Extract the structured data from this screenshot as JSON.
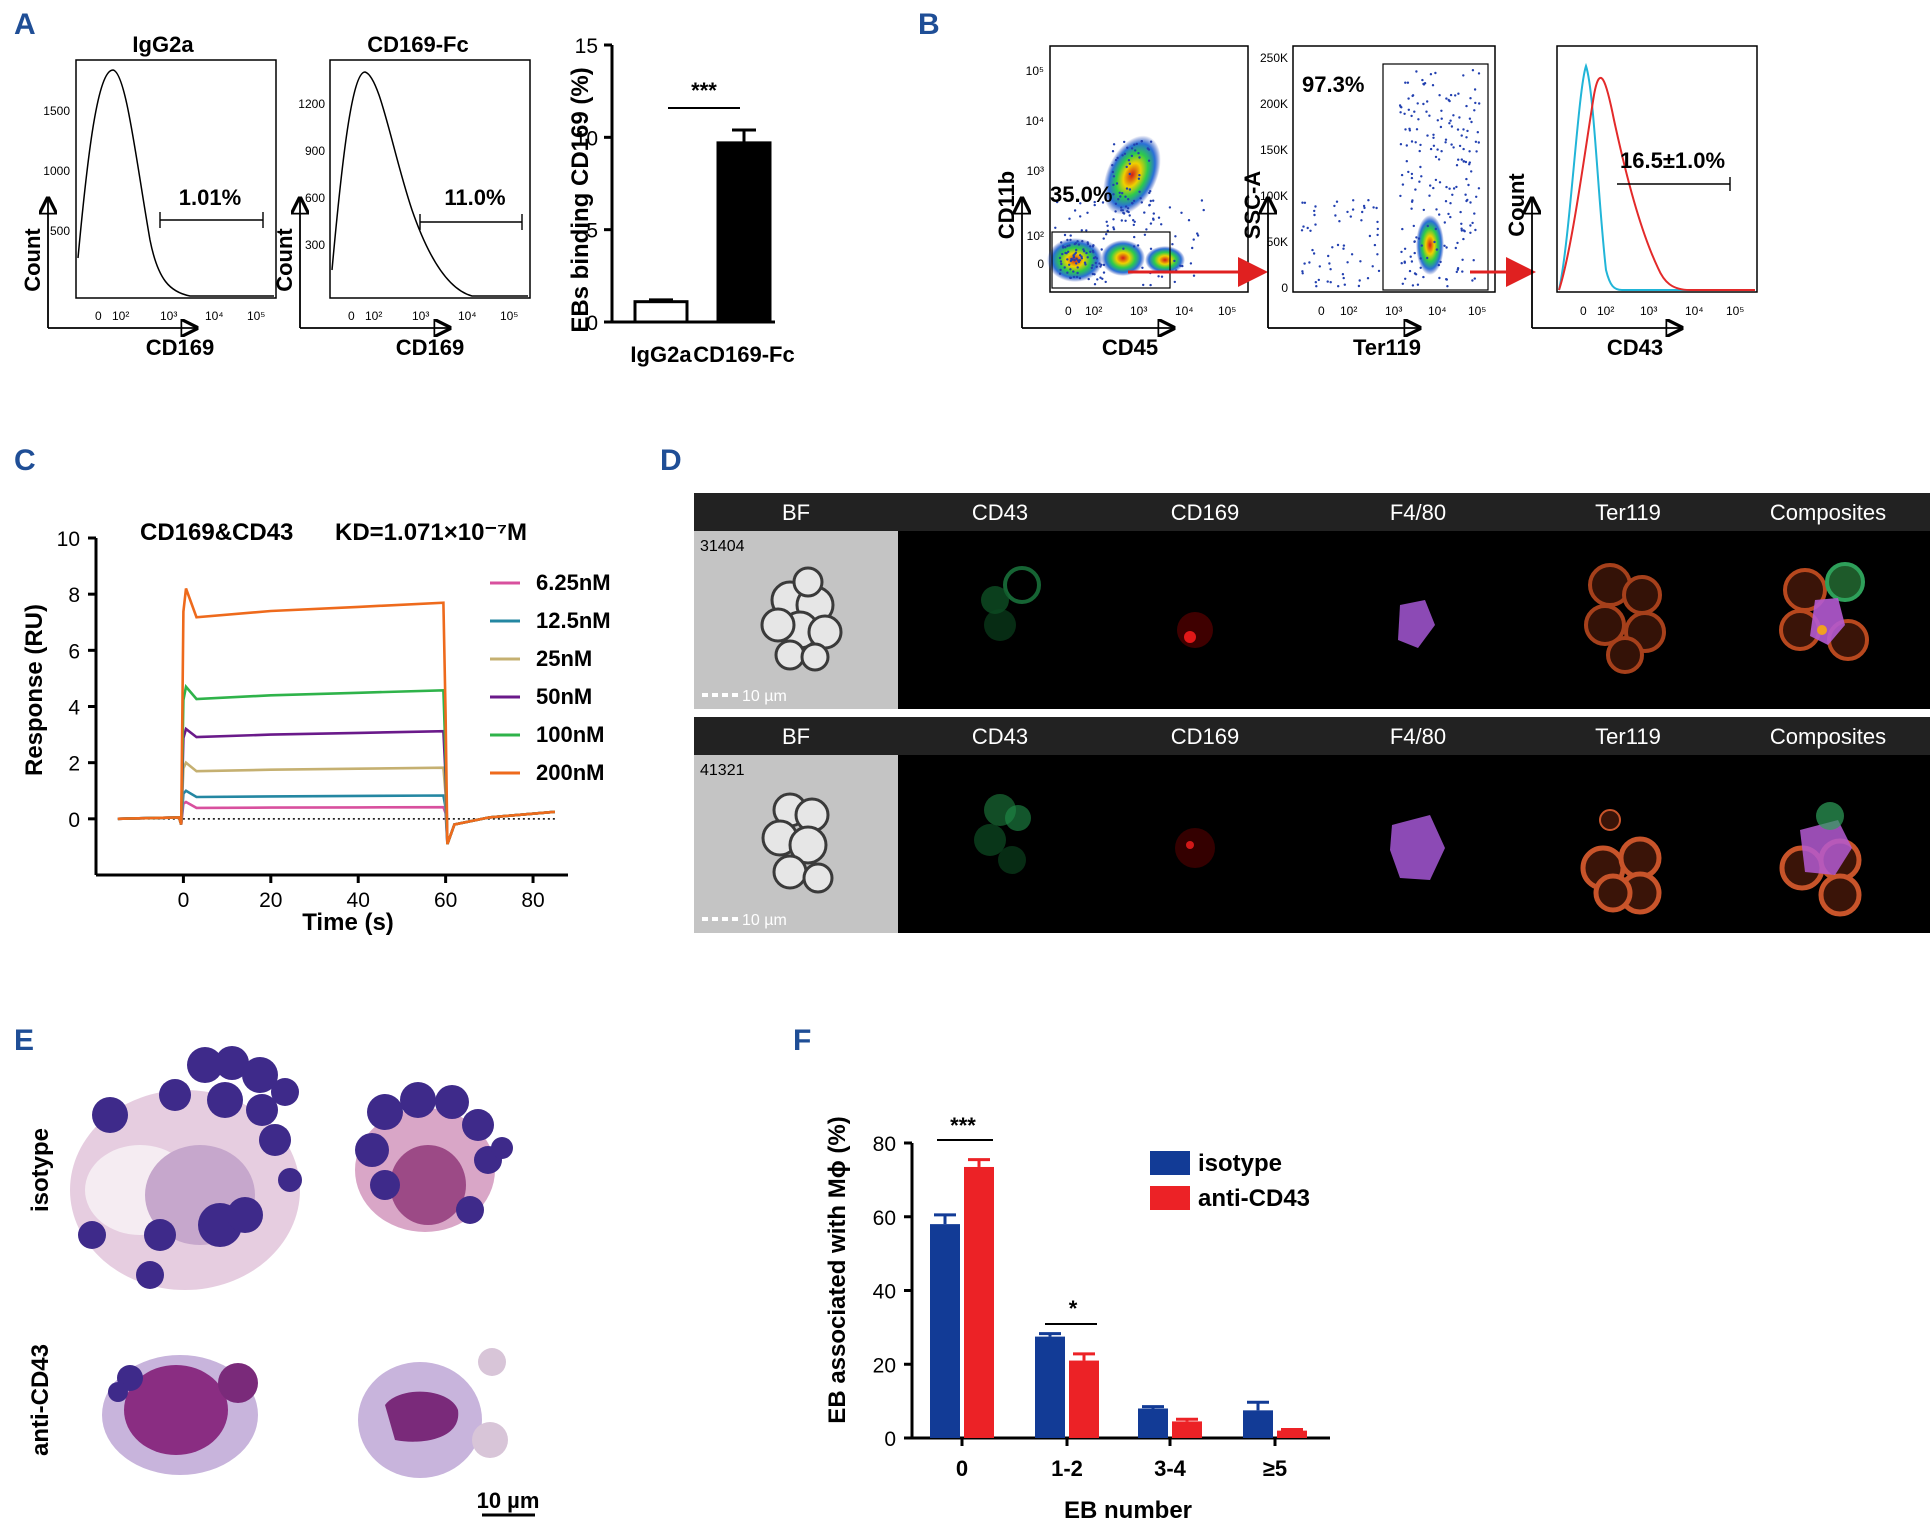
{
  "panel_labels": [
    "A",
    "B",
    "C",
    "D",
    "E",
    "F"
  ],
  "colors": {
    "panel_label": "#1f4e96",
    "isotype": "#123b96",
    "anti_cd43": "#ec2226",
    "red_arrow": "#e02020",
    "cyan_hist": "#21b5d8",
    "red_hist": "#e32a2a"
  },
  "panel_a": {
    "hist1": {
      "title": "IgG2a",
      "xlabel": "CD169",
      "ylabel": "Count",
      "gate": "1.01%",
      "yticks": [
        "1500",
        "1000",
        "500"
      ],
      "xticks": [
        "0",
        "10²",
        "10³",
        "10⁴",
        "10⁵"
      ]
    },
    "hist2": {
      "title": "CD169-Fc",
      "xlabel": "CD169",
      "ylabel": "Count",
      "gate": "11.0%",
      "yticks": [
        "1200",
        "900",
        "600",
        "300"
      ],
      "xticks": [
        "0",
        "10²",
        "10³",
        "10⁴",
        "10⁵"
      ]
    },
    "significance": "***"
  },
  "panel_b": {
    "plot1": {
      "xlabel": "CD45",
      "ylabel": "CD11b",
      "gate": "35.0%",
      "yticks": [
        "10⁵",
        "10⁴",
        "10³",
        "10²",
        "0"
      ],
      "xticks": [
        "0",
        "10²",
        "10³",
        "10⁴",
        "10⁵"
      ]
    },
    "plot2": {
      "xlabel": "Ter119",
      "ylabel": "SSC-A",
      "gate": "97.3%",
      "yticks": [
        "250K",
        "200K",
        "150K",
        "100K",
        "50K",
        "0"
      ],
      "xticks": [
        "0",
        "10²",
        "10³",
        "10⁴",
        "10⁵"
      ]
    },
    "plot3": {
      "xlabel": "CD43",
      "ylabel": "Count",
      "gate": "16.5±1.0%",
      "xticks": [
        "0",
        "10²",
        "10³",
        "10⁴",
        "10⁵"
      ]
    }
  },
  "panel_d": {
    "headers": [
      "BF",
      "CD43",
      "CD169",
      "F4/80",
      "Ter119",
      "Composites"
    ],
    "rows": [
      {
        "id": "31404",
        "scale": "10 µm"
      },
      {
        "id": "41321",
        "scale": "10 µm"
      }
    ]
  },
  "panel_e": {
    "rows": [
      "isotype",
      "anti-CD43"
    ],
    "scale": "10 µm"
  },
  "chart_data": [
    {
      "type": "bar",
      "panel": "A",
      "categories": [
        "IgG2a",
        "CD169-Fc"
      ],
      "values": [
        1.1,
        9.7
      ],
      "errors": [
        0.1,
        0.7
      ],
      "title": "",
      "xlabel": "",
      "ylabel": "EBs binding CD169 (%)",
      "ylim": [
        0,
        15
      ],
      "yticks": [
        0,
        5,
        10,
        15
      ]
    },
    {
      "type": "line",
      "panel": "C",
      "title": "CD169&CD43",
      "annotation": "KD=1.071×10⁻⁷M",
      "xlabel": "Time (s)",
      "ylabel": "Response (RU)",
      "xlim": [
        -20,
        88
      ],
      "ylim": [
        -2,
        10
      ],
      "xticks": [
        0,
        20,
        40,
        60,
        80
      ],
      "yticks": [
        0,
        2,
        4,
        6,
        8,
        10
      ],
      "series": [
        {
          "name": "6.25nM",
          "color": "#d8509e",
          "plateau": 0.4,
          "peak": 0.6
        },
        {
          "name": "12.5nM",
          "color": "#2487a2",
          "plateau": 0.8,
          "peak": 1.0
        },
        {
          "name": "25nM",
          "color": "#c5b071",
          "plateau": 1.75,
          "peak": 2.0
        },
        {
          "name": "50nM",
          "color": "#6a1a8a",
          "plateau": 3.0,
          "peak": 3.2
        },
        {
          "name": "100nM",
          "color": "#2fb34a",
          "plateau": 4.4,
          "peak": 4.7
        },
        {
          "name": "200nM",
          "color": "#ee6a1c",
          "plateau": 7.4,
          "peak": 8.2
        }
      ]
    },
    {
      "type": "bar",
      "panel": "F",
      "categories": [
        "0",
        "1-2",
        "3-4",
        "≥5"
      ],
      "title": "",
      "xlabel": "EB number",
      "ylabel": "EB associated with Mϕ (%)",
      "ylim": [
        0,
        80
      ],
      "yticks": [
        0,
        20,
        40,
        60,
        80
      ],
      "series": [
        {
          "name": "isotype",
          "values": [
            58,
            27.5,
            8,
            7.5
          ],
          "errors": [
            2.5,
            0.8,
            0.5,
            2.2
          ]
        },
        {
          "name": "anti-CD43",
          "values": [
            73.5,
            21,
            4.5,
            2
          ],
          "errors": [
            2.0,
            1.8,
            0.6,
            0.3
          ]
        }
      ],
      "significance": [
        {
          "category": "0",
          "label": "***"
        },
        {
          "category": "1-2",
          "label": "*"
        }
      ]
    }
  ]
}
